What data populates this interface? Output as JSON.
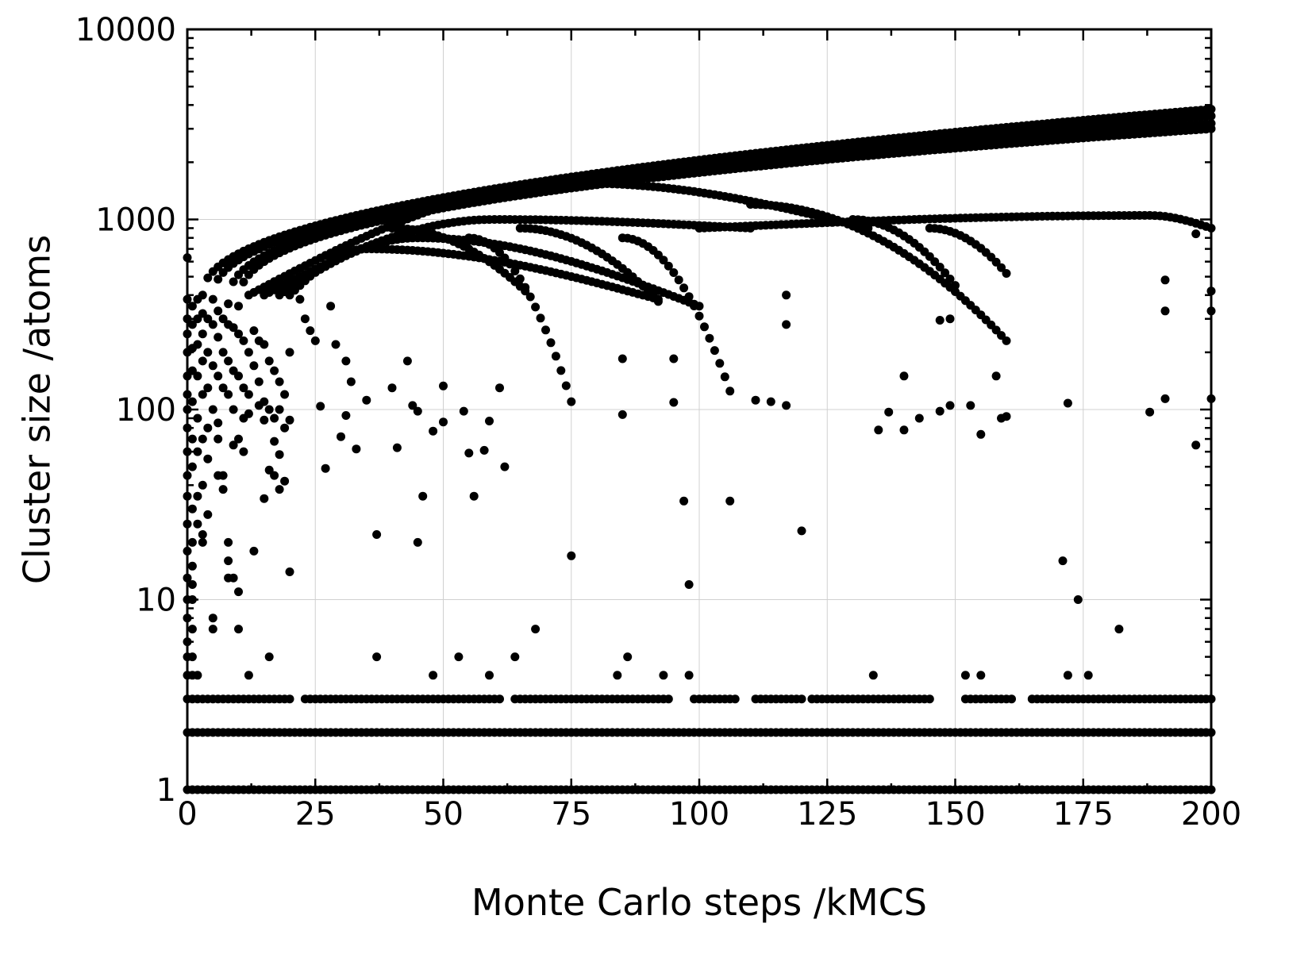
{
  "chart_data": {
    "type": "scatter",
    "title": "",
    "xlabel": "Monte Carlo steps /kMCS",
    "ylabel": "Cluster size /atoms",
    "xlim": [
      0,
      200
    ],
    "ylim": [
      1,
      10000
    ],
    "yscale": "log",
    "grid": true,
    "legend": "none",
    "marker_color": "#000000",
    "xticks": [
      0,
      25,
      50,
      75,
      100,
      125,
      150,
      175,
      200
    ],
    "xtick_labels": [
      "0",
      "25",
      "50",
      "75",
      "100",
      "125",
      "150",
      "175",
      "200"
    ],
    "yticks": [
      1,
      10,
      100,
      1000,
      10000
    ],
    "ytick_labels": [
      "1",
      "10",
      "100",
      "1000",
      "10000"
    ],
    "series": [
      {
        "constant_rows": [
          {
            "y": 1,
            "x_start": 0,
            "x_end": 200,
            "x_step": 1
          },
          {
            "y": 2,
            "x_start": 0,
            "x_end": 200,
            "x_step": 1
          },
          {
            "y": 3,
            "x_start": 0,
            "x_end": 200,
            "x_step": 1,
            "gaps": [
              [
                21,
                22
              ],
              [
                62,
                63
              ],
              [
                95,
                98
              ],
              [
                108,
                110
              ],
              [
                121,
                121
              ],
              [
                146,
                151
              ],
              [
                162,
                164
              ]
            ]
          }
        ],
        "branches": [
          {
            "x_start": 3,
            "x_end": 200,
            "x_step": 1,
            "y_start": 400,
            "y_end": 3800,
            "shape": 0.45
          },
          {
            "x_start": 5,
            "x_end": 200,
            "x_step": 1,
            "y_start": 380,
            "y_end": 3500,
            "shape": 0.42
          },
          {
            "x_start": 8,
            "x_end": 200,
            "x_step": 1,
            "y_start": 360,
            "y_end": 3200,
            "shape": 0.4
          },
          {
            "x_start": 10,
            "x_end": 200,
            "x_step": 1,
            "y_start": 350,
            "y_end": 3000,
            "shape": 0.38
          }
        ],
        "dome_curves": [
          {
            "x_start": 12,
            "x_peak": 77,
            "x_end": 133,
            "y_start": 400,
            "y_peak": 1550,
            "y_end": 900
          },
          {
            "x_start": 15,
            "x_peak": 60,
            "x_end": 110,
            "y_start": 400,
            "y_peak": 1000,
            "y_end": 900
          },
          {
            "x_start": 18,
            "x_peak": 45,
            "x_end": 100,
            "y_start": 400,
            "y_peak": 800,
            "y_end": 350
          },
          {
            "x_start": 20,
            "x_peak": 35,
            "x_end": 92,
            "y_start": 400,
            "y_peak": 700,
            "y_end": 380
          },
          {
            "x_start": 100,
            "x_peak": 188,
            "x_end": 200,
            "y_start": 900,
            "y_peak": 1050,
            "y_end": 900
          }
        ],
        "falling_curves": [
          {
            "x_start": 40,
            "x_end": 66,
            "y_start": 900,
            "y_end": 420
          },
          {
            "x_start": 55,
            "x_end": 75,
            "y_start": 800,
            "y_end": 110
          },
          {
            "x_start": 65,
            "x_end": 92,
            "y_start": 900,
            "y_end": 370
          },
          {
            "x_start": 85,
            "x_end": 106,
            "y_start": 800,
            "y_end": 125
          },
          {
            "x_start": 110,
            "x_end": 160,
            "y_start": 1200,
            "y_end": 230
          },
          {
            "x_start": 130,
            "x_end": 150,
            "y_start": 1000,
            "y_end": 450
          },
          {
            "x_start": 145,
            "x_end": 160,
            "y_start": 900,
            "y_end": 520
          }
        ],
        "points": [
          [
            0,
            630
          ],
          [
            0,
            380
          ],
          [
            0,
            300
          ],
          [
            0,
            250
          ],
          [
            0,
            200
          ],
          [
            0,
            150
          ],
          [
            0,
            120
          ],
          [
            0,
            100
          ],
          [
            0,
            80
          ],
          [
            0,
            60
          ],
          [
            0,
            45
          ],
          [
            0,
            35
          ],
          [
            0,
            25
          ],
          [
            0,
            18
          ],
          [
            0,
            13
          ],
          [
            0,
            10
          ],
          [
            0,
            8
          ],
          [
            0,
            6
          ],
          [
            0,
            5
          ],
          [
            0,
            4
          ],
          [
            1,
            350
          ],
          [
            1,
            280
          ],
          [
            1,
            210
          ],
          [
            1,
            160
          ],
          [
            1,
            110
          ],
          [
            1,
            70
          ],
          [
            1,
            50
          ],
          [
            1,
            30
          ],
          [
            1,
            20
          ],
          [
            1,
            15
          ],
          [
            1,
            12
          ],
          [
            1,
            10
          ],
          [
            1,
            7
          ],
          [
            1,
            5
          ],
          [
            1,
            4
          ],
          [
            2,
            380
          ],
          [
            2,
            300
          ],
          [
            2,
            220
          ],
          [
            2,
            150
          ],
          [
            2,
            90
          ],
          [
            2,
            60
          ],
          [
            2,
            35
          ],
          [
            2,
            25
          ],
          [
            2,
            4
          ],
          [
            3,
            320
          ],
          [
            3,
            250
          ],
          [
            3,
            180
          ],
          [
            3,
            120
          ],
          [
            3,
            70
          ],
          [
            3,
            40
          ],
          [
            3,
            22
          ],
          [
            3,
            20
          ],
          [
            4,
            300
          ],
          [
            4,
            200
          ],
          [
            4,
            130
          ],
          [
            4,
            80
          ],
          [
            4,
            55
          ],
          [
            4,
            28
          ],
          [
            5,
            280
          ],
          [
            5,
            170
          ],
          [
            5,
            100
          ],
          [
            5,
            8
          ],
          [
            5,
            7
          ],
          [
            6,
            330
          ],
          [
            6,
            240
          ],
          [
            6,
            150
          ],
          [
            6,
            85
          ],
          [
            6,
            70
          ],
          [
            6,
            45
          ],
          [
            7,
            300
          ],
          [
            7,
            200
          ],
          [
            7,
            130
          ],
          [
            7,
            45
          ],
          [
            7,
            38
          ],
          [
            8,
            280
          ],
          [
            8,
            180
          ],
          [
            8,
            120
          ],
          [
            8,
            20
          ],
          [
            8,
            16
          ],
          [
            8,
            13
          ],
          [
            9,
            270
          ],
          [
            9,
            160
          ],
          [
            9,
            100
          ],
          [
            9,
            65
          ],
          [
            9,
            13
          ],
          [
            10,
            250
          ],
          [
            10,
            150
          ],
          [
            10,
            70
          ],
          [
            10,
            11
          ],
          [
            10,
            7
          ],
          [
            11,
            230
          ],
          [
            11,
            130
          ],
          [
            11,
            90
          ],
          [
            11,
            60
          ],
          [
            12,
            200
          ],
          [
            12,
            120
          ],
          [
            12,
            95
          ],
          [
            12,
            4
          ],
          [
            13,
            260
          ],
          [
            13,
            170
          ],
          [
            13,
            18
          ],
          [
            14,
            230
          ],
          [
            14,
            140
          ],
          [
            14,
            105
          ],
          [
            15,
            220
          ],
          [
            15,
            110
          ],
          [
            15,
            88
          ],
          [
            15,
            34
          ],
          [
            16,
            180
          ],
          [
            16,
            100
          ],
          [
            16,
            48
          ],
          [
            16,
            5
          ],
          [
            17,
            160
          ],
          [
            17,
            90
          ],
          [
            17,
            68
          ],
          [
            17,
            45
          ],
          [
            18,
            140
          ],
          [
            18,
            100
          ],
          [
            18,
            58
          ],
          [
            18,
            38
          ],
          [
            19,
            120
          ],
          [
            19,
            80
          ],
          [
            19,
            42
          ],
          [
            20,
            200
          ],
          [
            20,
            88
          ],
          [
            20,
            14
          ],
          [
            22,
            380
          ],
          [
            23,
            300
          ],
          [
            24,
            260
          ],
          [
            25,
            230
          ],
          [
            26,
            104
          ],
          [
            27,
            49
          ],
          [
            28,
            350
          ],
          [
            29,
            220
          ],
          [
            30,
            72
          ],
          [
            31,
            180
          ],
          [
            31,
            93
          ],
          [
            32,
            140
          ],
          [
            33,
            62
          ],
          [
            35,
            112
          ],
          [
            37,
            22
          ],
          [
            37,
            5
          ],
          [
            40,
            130
          ],
          [
            41,
            63
          ],
          [
            43,
            180
          ],
          [
            44,
            105
          ],
          [
            45,
            20
          ],
          [
            45,
            98
          ],
          [
            46,
            35
          ],
          [
            48,
            4
          ],
          [
            48,
            77
          ],
          [
            50,
            86
          ],
          [
            50,
            133
          ],
          [
            53,
            5
          ],
          [
            54,
            98
          ],
          [
            55,
            59
          ],
          [
            56,
            35
          ],
          [
            58,
            61
          ],
          [
            59,
            87
          ],
          [
            59,
            4
          ],
          [
            61,
            130
          ],
          [
            62,
            50
          ],
          [
            64,
            5
          ],
          [
            68,
            7
          ],
          [
            75,
            17
          ],
          [
            84,
            4
          ],
          [
            85,
            185
          ],
          [
            85,
            94
          ],
          [
            86,
            5
          ],
          [
            93,
            4
          ],
          [
            95,
            185
          ],
          [
            95,
            109
          ],
          [
            97,
            33
          ],
          [
            98,
            12
          ],
          [
            98,
            4
          ],
          [
            106,
            33
          ],
          [
            111,
            112
          ],
          [
            114,
            110
          ],
          [
            117,
            105
          ],
          [
            117,
            280
          ],
          [
            117,
            400
          ],
          [
            120,
            23
          ],
          [
            134,
            4
          ],
          [
            135,
            78
          ],
          [
            137,
            97
          ],
          [
            140,
            78
          ],
          [
            140,
            150
          ],
          [
            143,
            90
          ],
          [
            147,
            295
          ],
          [
            147,
            98
          ],
          [
            149,
            300
          ],
          [
            149,
            105
          ],
          [
            152,
            4
          ],
          [
            153,
            105
          ],
          [
            155,
            74
          ],
          [
            155,
            4
          ],
          [
            158,
            150
          ],
          [
            159,
            90
          ],
          [
            160,
            92
          ],
          [
            171,
            16
          ],
          [
            172,
            108
          ],
          [
            172,
            4
          ],
          [
            174,
            10
          ],
          [
            176,
            4
          ],
          [
            182,
            7
          ],
          [
            188,
            97
          ],
          [
            191,
            480
          ],
          [
            191,
            330
          ],
          [
            191,
            114
          ],
          [
            197,
            65
          ],
          [
            197,
            840
          ],
          [
            200,
            420
          ],
          [
            200,
            330
          ],
          [
            200,
            114
          ]
        ]
      }
    ]
  }
}
